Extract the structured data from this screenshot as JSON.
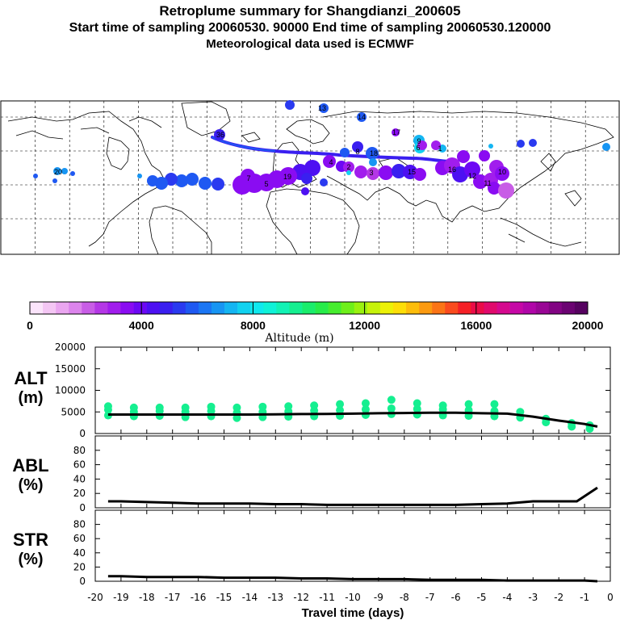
{
  "header": {
    "title": "Retroplume summary for Shangdianzi_200605",
    "sampling": "Start time of sampling 20060530. 90000     End time of sampling 20060530.120000",
    "met": "Meteorological data used is ECMWF"
  },
  "colorbar": {
    "label": "Altitude (m)",
    "ticks": [
      "0",
      "4000",
      "8000",
      "12000",
      "16000",
      "20000"
    ],
    "colors": [
      "#fbe4fb",
      "#f4c6f4",
      "#eaa6f0",
      "#dc84ec",
      "#c85de6",
      "#b437e6",
      "#a11ded",
      "#8a0cf2",
      "#6c08f4",
      "#4d10f2",
      "#3a1ff0",
      "#2a3af0",
      "#1f59f2",
      "#1b76f4",
      "#1795f3",
      "#14b5f2",
      "#11d2f0",
      "#0fe9ee",
      "#0ff2d8",
      "#12f2b5",
      "#15ef90",
      "#1aed6c",
      "#27ec49",
      "#46ed2e",
      "#6eef1a",
      "#9af10f",
      "#c6f20a",
      "#ecf107",
      "#fdde08",
      "#fdbd0b",
      "#fc9a10",
      "#fb7416",
      "#fa4b1e",
      "#f52026",
      "#ea0c48",
      "#e00a6c",
      "#d5098e",
      "#c608a6",
      "#b006a8",
      "#990695",
      "#820483",
      "#6b0372",
      "#560260"
    ]
  },
  "map_labels": [
    "36",
    "13",
    "14",
    "17",
    "9",
    "6",
    "1",
    "8",
    "18",
    "4",
    "2",
    "3",
    "15",
    "16",
    "12",
    "11",
    "10",
    "7",
    "5",
    "19",
    "20"
  ],
  "chart_data": [
    {
      "type": "line",
      "panel": "ALT",
      "ylabel": "ALT (m)",
      "ylim": [
        0,
        20000
      ],
      "yticks": [
        "0",
        "5000",
        "10000",
        "15000",
        "20000"
      ],
      "x": [
        -19.5,
        -19,
        -18,
        -17,
        -16,
        -15,
        -14,
        -13,
        -12,
        -11,
        -10,
        -9,
        -8,
        -7,
        -6,
        -5,
        -4,
        -3,
        -2,
        -1,
        -0.5
      ],
      "values": [
        4400,
        4400,
        4400,
        4400,
        4400,
        4400,
        4400,
        4450,
        4500,
        4550,
        4600,
        4700,
        4750,
        4800,
        4800,
        4700,
        4600,
        3900,
        3000,
        2200,
        1600
      ],
      "scatter_points": [
        {
          "x": -19.5,
          "y": 4200
        },
        {
          "x": -19.5,
          "y": 5500
        },
        {
          "x": -19.5,
          "y": 6300
        },
        {
          "x": -18.5,
          "y": 4000
        },
        {
          "x": -18.5,
          "y": 5000
        },
        {
          "x": -18.5,
          "y": 6000
        },
        {
          "x": -17.5,
          "y": 4100
        },
        {
          "x": -17.5,
          "y": 5200
        },
        {
          "x": -17.5,
          "y": 6000
        },
        {
          "x": -16.5,
          "y": 3800
        },
        {
          "x": -16.5,
          "y": 5000
        },
        {
          "x": -16.5,
          "y": 6000
        },
        {
          "x": -15.5,
          "y": 4000
        },
        {
          "x": -15.5,
          "y": 5200
        },
        {
          "x": -15.5,
          "y": 6200
        },
        {
          "x": -14.5,
          "y": 3600
        },
        {
          "x": -14.5,
          "y": 4800
        },
        {
          "x": -14.5,
          "y": 6000
        },
        {
          "x": -13.5,
          "y": 3800
        },
        {
          "x": -13.5,
          "y": 5000
        },
        {
          "x": -13.5,
          "y": 6200
        },
        {
          "x": -12.5,
          "y": 3900
        },
        {
          "x": -12.5,
          "y": 5100
        },
        {
          "x": -12.5,
          "y": 6300
        },
        {
          "x": -11.5,
          "y": 4000
        },
        {
          "x": -11.5,
          "y": 5300
        },
        {
          "x": -11.5,
          "y": 6500
        },
        {
          "x": -10.5,
          "y": 4100
        },
        {
          "x": -10.5,
          "y": 5400
        },
        {
          "x": -10.5,
          "y": 6800
        },
        {
          "x": -9.5,
          "y": 4300
        },
        {
          "x": -9.5,
          "y": 5600
        },
        {
          "x": -9.5,
          "y": 7000
        },
        {
          "x": -8.5,
          "y": 4500
        },
        {
          "x": -8.5,
          "y": 5800
        },
        {
          "x": -8.5,
          "y": 7800
        },
        {
          "x": -7.5,
          "y": 4400
        },
        {
          "x": -7.5,
          "y": 5700
        },
        {
          "x": -7.5,
          "y": 7000
        },
        {
          "x": -6.5,
          "y": 4200
        },
        {
          "x": -6.5,
          "y": 5600
        },
        {
          "x": -6.5,
          "y": 6500
        },
        {
          "x": -5.5,
          "y": 4100
        },
        {
          "x": -5.5,
          "y": 5400
        },
        {
          "x": -5.5,
          "y": 6800
        },
        {
          "x": -4.5,
          "y": 4000
        },
        {
          "x": -4.5,
          "y": 5200
        },
        {
          "x": -4.5,
          "y": 6800
        },
        {
          "x": -3.5,
          "y": 3700
        },
        {
          "x": -3.5,
          "y": 5000
        },
        {
          "x": -2.5,
          "y": 2600
        },
        {
          "x": -2.5,
          "y": 3400
        },
        {
          "x": -1.5,
          "y": 1600
        },
        {
          "x": -1.5,
          "y": 2400
        },
        {
          "x": -0.8,
          "y": 1100
        },
        {
          "x": -0.8,
          "y": 1900
        }
      ]
    },
    {
      "type": "line",
      "panel": "ABL",
      "ylabel": "ABL (%)",
      "ylim": [
        0,
        100
      ],
      "yticks": [
        "0",
        "20",
        "40",
        "60",
        "80"
      ],
      "x": [
        -19.5,
        -19,
        -18,
        -17,
        -16,
        -15,
        -14,
        -13,
        -12,
        -11,
        -10,
        -9,
        -8,
        -7,
        -6,
        -5,
        -4,
        -3,
        -2,
        -1.3,
        -0.5
      ],
      "values": [
        9,
        9,
        8,
        7,
        6,
        6,
        6,
        5,
        5,
        4,
        4,
        4,
        4,
        4,
        4,
        5,
        6,
        9,
        9,
        9,
        28
      ]
    },
    {
      "type": "line",
      "panel": "STR",
      "ylabel": "STR (%)",
      "ylim": [
        0,
        100
      ],
      "yticks": [
        "0",
        "20",
        "40",
        "60",
        "80"
      ],
      "xlabel": "Travel time (days)",
      "xticks": [
        "-20",
        "-19",
        "-18",
        "-17",
        "-16",
        "-15",
        "-14",
        "-13",
        "-12",
        "-11",
        "-10",
        "-9",
        "-8",
        "-7",
        "-6",
        "-5",
        "-4",
        "-3",
        "-2",
        "-1",
        "0"
      ],
      "xlim": [
        -20,
        0
      ],
      "x": [
        -19.5,
        -19,
        -18,
        -17,
        -16,
        -15,
        -14,
        -13,
        -12,
        -11,
        -10,
        -9,
        -8,
        -7,
        -6,
        -5,
        -4,
        -3,
        -2,
        -1,
        -0.5
      ],
      "values": [
        7,
        7,
        6,
        6,
        6,
        5,
        5,
        5,
        4,
        4,
        3,
        3,
        3,
        2,
        2,
        2,
        1,
        1,
        1,
        1,
        0
      ]
    }
  ]
}
